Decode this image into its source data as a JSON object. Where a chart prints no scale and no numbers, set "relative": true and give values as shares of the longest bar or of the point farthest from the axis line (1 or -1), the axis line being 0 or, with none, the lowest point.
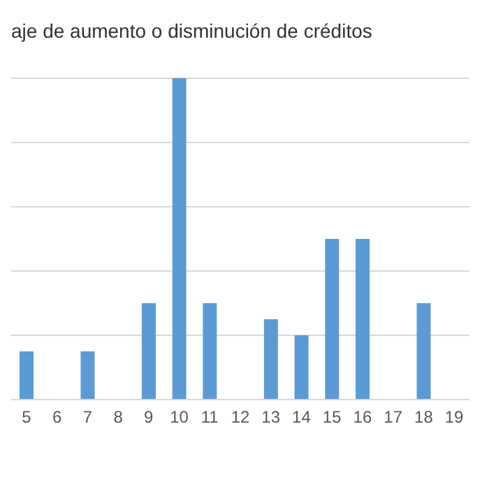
{
  "chart_data": {
    "type": "bar",
    "title": "aje de aumento o disminución de créditos",
    "categories": [
      "5",
      "6",
      "7",
      "8",
      "9",
      "10",
      "11",
      "12",
      "13",
      "14",
      "15",
      "16",
      "17",
      "18",
      "19"
    ],
    "values": [
      0.15,
      0,
      0.15,
      0,
      0.3,
      1,
      0.3,
      0,
      0.25,
      0.2,
      0.5,
      0.5,
      0,
      0.3,
      0
    ],
    "color": "#5b9bd5",
    "relative": true,
    "grid": "y",
    "legend": false
  }
}
